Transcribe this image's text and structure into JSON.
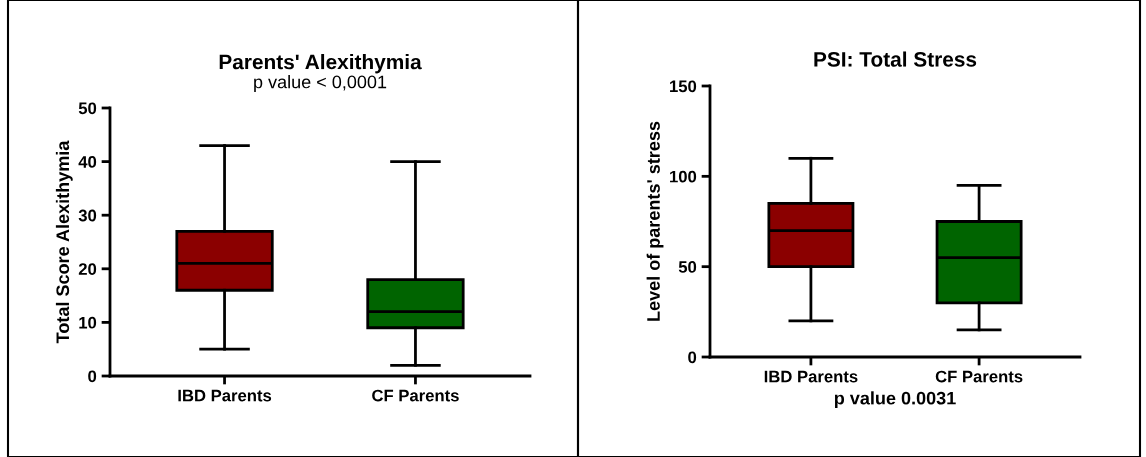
{
  "chart_data": [
    {
      "type": "box",
      "title": "Parents' Alexithymia",
      "subtitle": "p value < 0,0001",
      "ylabel": "Total Score Alexithymia",
      "categories": [
        "IBD Parents",
        "CF Parents"
      ],
      "colors": [
        "#8b0000",
        "#006400"
      ],
      "ylim": [
        0,
        50
      ],
      "yticks": [
        0,
        10,
        20,
        30,
        40,
        50
      ],
      "grid": false,
      "boxes": [
        {
          "low": 5,
          "q1": 16,
          "median": 21,
          "q3": 27,
          "high": 43
        },
        {
          "low": 2,
          "q1": 9,
          "median": 12,
          "q3": 18,
          "high": 40
        }
      ]
    },
    {
      "type": "box",
      "title": "PSI: Total Stress",
      "xlabel": "p value 0.0031",
      "ylabel": "Level of parents' stress",
      "categories": [
        "IBD Parents",
        "CF Parents"
      ],
      "colors": [
        "#8b0000",
        "#006400"
      ],
      "ylim": [
        0,
        150
      ],
      "yticks": [
        0,
        50,
        100,
        150
      ],
      "grid": false,
      "boxes": [
        {
          "low": 20,
          "q1": 50,
          "median": 70,
          "q3": 85,
          "high": 110
        },
        {
          "low": 15,
          "q1": 30,
          "median": 55,
          "q3": 75,
          "high": 95
        }
      ]
    }
  ]
}
